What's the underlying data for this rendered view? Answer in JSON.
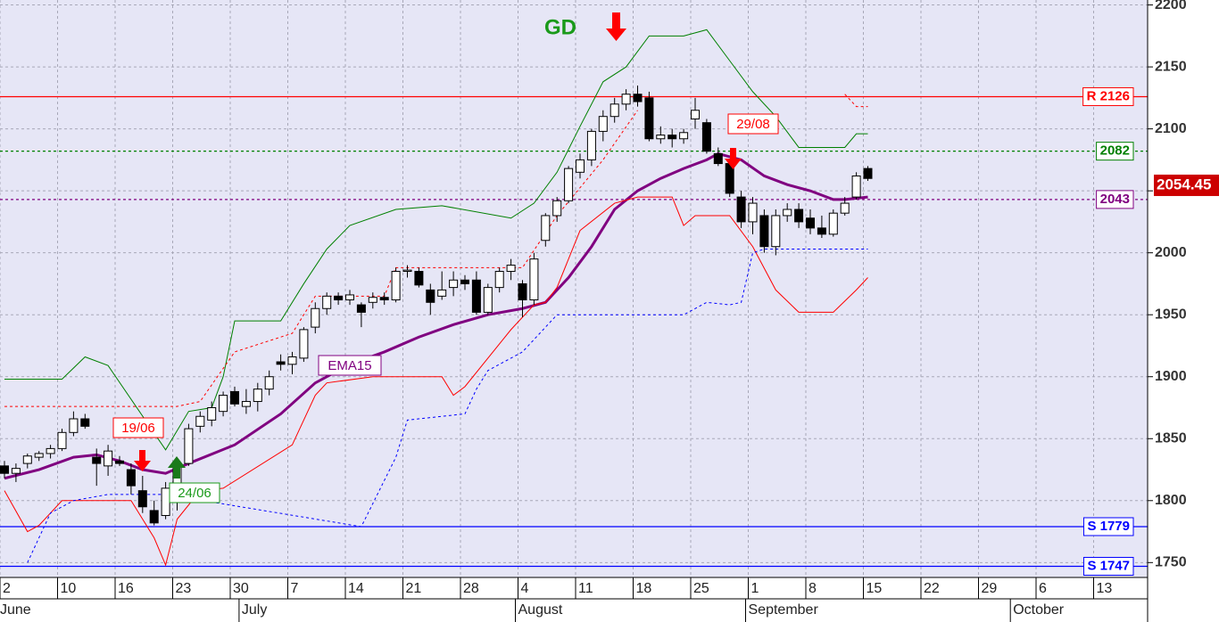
{
  "chart_data": {
    "type": "candlestick",
    "ylim": [
      1738,
      2204
    ],
    "yticks": [
      1750,
      1800,
      1850,
      1900,
      1950,
      2000,
      2050,
      2100,
      2150,
      2200
    ],
    "grid": true,
    "x_axis": {
      "labels": [
        "2",
        null,
        null,
        null,
        null,
        "10",
        null,
        null,
        null,
        null,
        "16",
        null,
        null,
        null,
        null,
        "23",
        null,
        null,
        null,
        null,
        "30",
        null,
        null,
        null,
        null,
        "7",
        null,
        null,
        null,
        null,
        "14",
        null,
        null,
        null,
        null,
        "21",
        null,
        null,
        null,
        null,
        "28",
        null,
        null,
        null,
        null,
        "4",
        null,
        null,
        null,
        null,
        "11",
        null,
        null,
        null,
        null,
        "18",
        null,
        null,
        null,
        null,
        "25",
        null,
        null,
        null,
        null,
        "1",
        null,
        null,
        null,
        null,
        "8",
        null,
        null,
        null,
        null,
        "15",
        null,
        null,
        null,
        null,
        "22",
        null,
        null,
        null,
        null,
        "29",
        null,
        null,
        null,
        null,
        "6",
        null,
        null,
        null,
        null,
        "13",
        null,
        null,
        null,
        null
      ],
      "months": [
        "June",
        null,
        null,
        null,
        null,
        null,
        null,
        null,
        null,
        null,
        null,
        null,
        null,
        null,
        null,
        null,
        null,
        null,
        null,
        null,
        null,
        "July",
        null,
        null,
        null,
        null,
        null,
        null,
        null,
        null,
        null,
        null,
        null,
        null,
        null,
        null,
        null,
        null,
        null,
        null,
        null,
        null,
        null,
        null,
        null,
        "August",
        null,
        null,
        null,
        null,
        null,
        null,
        null,
        null,
        null,
        null,
        null,
        null,
        null,
        null,
        null,
        null,
        null,
        null,
        null,
        "September",
        null,
        null,
        null,
        null,
        null,
        null,
        null,
        null,
        null,
        null,
        null,
        null,
        null,
        null,
        null,
        null,
        null,
        null,
        null,
        null,
        null,
        null,
        "October",
        null,
        null,
        null,
        null,
        null,
        null,
        null,
        null,
        null,
        null,
        null
      ]
    },
    "open": [
      1828,
      1822,
      1830,
      1835,
      1838,
      1842,
      1855,
      1866,
      1835,
      1828,
      1832,
      1825,
      1808,
      1792,
      1788,
      1800,
      1830,
      1860,
      1865,
      1872,
      1888,
      1876,
      1880,
      1890,
      1912,
      1910,
      1915,
      1940,
      1955,
      1965,
      1962,
      1958,
      1960,
      1964,
      1962,
      1985,
      1985,
      1970,
      1965,
      1972,
      1978,
      1978,
      1952,
      1972,
      1985,
      1975,
      1962,
      2010,
      2030,
      2042,
      2065,
      2075,
      2098,
      2110,
      2120,
      2128,
      2125,
      2092,
      2095,
      2092,
      2108,
      2105,
      2080,
      2072,
      2045,
      2025,
      2030,
      2005,
      2030,
      2035,
      2028,
      2020,
      2015,
      2032,
      2045,
      2068
    ],
    "high": [
      1832,
      1830,
      1838,
      1840,
      1845,
      1858,
      1872,
      1870,
      1842,
      1845,
      1836,
      1830,
      1820,
      1800,
      1815,
      1832,
      1862,
      1872,
      1880,
      1888,
      1892,
      1890,
      1895,
      1905,
      1918,
      1920,
      1940,
      1960,
      1968,
      1968,
      1970,
      1960,
      1968,
      1968,
      1988,
      1990,
      1988,
      1975,
      1985,
      1985,
      1982,
      1985,
      1975,
      1988,
      1995,
      1978,
      2000,
      2032,
      2045,
      2070,
      2080,
      2100,
      2115,
      2125,
      2132,
      2135,
      2130,
      2102,
      2100,
      2100,
      2125,
      2108,
      2085,
      2075,
      2050,
      2045,
      2035,
      2035,
      2040,
      2040,
      2035,
      2030,
      2035,
      2045,
      2065,
      2070
    ],
    "low": [
      1818,
      1815,
      1826,
      1832,
      1834,
      1840,
      1852,
      1858,
      1812,
      1820,
      1828,
      1805,
      1790,
      1780,
      1785,
      1792,
      1828,
      1855,
      1860,
      1868,
      1876,
      1870,
      1872,
      1885,
      1905,
      1902,
      1912,
      1935,
      1950,
      1958,
      1958,
      1940,
      1955,
      1958,
      1960,
      1980,
      1972,
      1950,
      1962,
      1965,
      1970,
      1950,
      1950,
      1968,
      1978,
      1948,
      1958,
      2005,
      2025,
      2040,
      2060,
      2070,
      2090,
      2105,
      2115,
      2118,
      2090,
      2088,
      2085,
      2088,
      2100,
      2080,
      2070,
      2045,
      2020,
      2015,
      2000,
      1998,
      2025,
      2020,
      2015,
      2012,
      2013,
      2030,
      2043,
      2058
    ],
    "close": [
      1822,
      1826,
      1836,
      1838,
      1842,
      1855,
      1866,
      1860,
      1830,
      1840,
      1830,
      1812,
      1795,
      1782,
      1810,
      1828,
      1858,
      1868,
      1875,
      1885,
      1878,
      1880,
      1890,
      1900,
      1910,
      1916,
      1938,
      1955,
      1965,
      1962,
      1966,
      1952,
      1964,
      1962,
      1985,
      1986,
      1974,
      1960,
      1970,
      1978,
      1975,
      1952,
      1972,
      1985,
      1990,
      1962,
      1995,
      2030,
      2042,
      2068,
      2075,
      2098,
      2110,
      2120,
      2128,
      2122,
      2092,
      2095,
      2092,
      2097,
      2115,
      2082,
      2072,
      2048,
      2025,
      2040,
      2005,
      2030,
      2035,
      2025,
      2020,
      2015,
      2032,
      2040,
      2062,
      2060
    ],
    "lines": [
      {
        "name": "EMA15",
        "color": "#800080",
        "width": 3,
        "dash": false,
        "x": [
          0,
          3,
          6,
          8,
          10,
          12,
          14,
          16,
          20,
          24,
          27,
          30,
          33,
          36,
          39,
          42,
          45,
          47,
          49,
          51,
          53,
          55,
          57,
          59,
          61,
          62,
          64,
          66,
          68,
          70,
          72,
          73,
          75
        ],
        "values": [
          1818,
          1825,
          1835,
          1837,
          1832,
          1825,
          1822,
          1830,
          1845,
          1870,
          1895,
          1910,
          1920,
          1932,
          1942,
          1950,
          1955,
          1960,
          1980,
          2005,
          2035,
          2050,
          2060,
          2068,
          2075,
          2080,
          2075,
          2062,
          2055,
          2050,
          2043,
          2043,
          2045
        ]
      },
      {
        "color": "#008000",
        "width": 1,
        "dash": false,
        "x": [
          0,
          5,
          7,
          9,
          14,
          16,
          18,
          19,
          20,
          24,
          26,
          28,
          30,
          34,
          38,
          44,
          46,
          48,
          50,
          52,
          54,
          56,
          59,
          61,
          63,
          65,
          67,
          69,
          73,
          74,
          75
        ],
        "values": [
          1898,
          1898,
          1916,
          1909,
          1841,
          1872,
          1875,
          1900,
          1945,
          1945,
          1975,
          2003,
          2022,
          2035,
          2038,
          2028,
          2040,
          2065,
          2102,
          2138,
          2150,
          2175,
          2175,
          2180,
          2155,
          2130,
          2110,
          2085,
          2085,
          2096,
          2096
        ]
      },
      {
        "color": "#ff0000",
        "width": 1,
        "dash": false,
        "x": [
          0,
          2,
          3,
          5,
          11,
          13,
          14,
          15,
          17,
          19,
          25,
          27,
          28,
          32,
          38,
          39,
          40,
          44,
          46,
          47,
          48,
          50,
          53,
          55,
          58,
          59,
          60,
          63,
          65,
          67,
          69,
          72,
          74,
          75
        ],
        "values": [
          1808,
          1775,
          1780,
          1800,
          1800,
          1770,
          1748,
          1785,
          1808,
          1810,
          1845,
          1885,
          1895,
          1900,
          1900,
          1885,
          1892,
          1938,
          1958,
          1960,
          1972,
          2018,
          2040,
          2045,
          2045,
          2022,
          2030,
          2030,
          2005,
          1970,
          1952,
          1952,
          1970,
          1980
        ]
      },
      {
        "color": "#ff0000",
        "width": 1,
        "dash": true,
        "x": [
          0,
          15,
          17,
          20,
          25,
          27,
          33,
          34,
          43,
          45,
          48,
          52,
          55,
          60,
          73,
          74,
          75
        ],
        "values": [
          1876,
          1876,
          1880,
          1920,
          1935,
          1965,
          1965,
          1988,
          1988,
          1988,
          2030,
          2075,
          2115,
          null,
          2128,
          2118,
          2118
        ]
      },
      {
        "color": "#0000ff",
        "width": 1,
        "dash": true,
        "x": [
          2,
          4,
          6,
          9,
          14,
          31,
          34,
          35,
          40,
          41,
          42,
          45,
          47,
          48,
          59,
          61,
          63,
          64,
          65,
          66,
          75
        ],
        "values": [
          1750,
          1790,
          1800,
          1805,
          1805,
          1779,
          1835,
          1865,
          1870,
          1890,
          1905,
          1920,
          1940,
          1950,
          1950,
          1960,
          1958,
          1960,
          2000,
          2003,
          2003
        ]
      }
    ],
    "levels": [
      {
        "value": 2126,
        "label": "R 2126",
        "color": "#ff0000",
        "dash": false
      },
      {
        "value": 2082,
        "color": "#008000",
        "dash": true
      },
      {
        "value": 2043,
        "color": "#800080",
        "dash": true
      },
      {
        "value": 1779,
        "label": "S 1779",
        "color": "#0000ff",
        "dash": false
      },
      {
        "value": 1747,
        "label": "S 1747",
        "color": "#0000ff",
        "dash": false
      }
    ],
    "last_price": 2054.45,
    "annotations": [
      "GD",
      "19/06",
      "24/06",
      "29/08"
    ]
  }
}
